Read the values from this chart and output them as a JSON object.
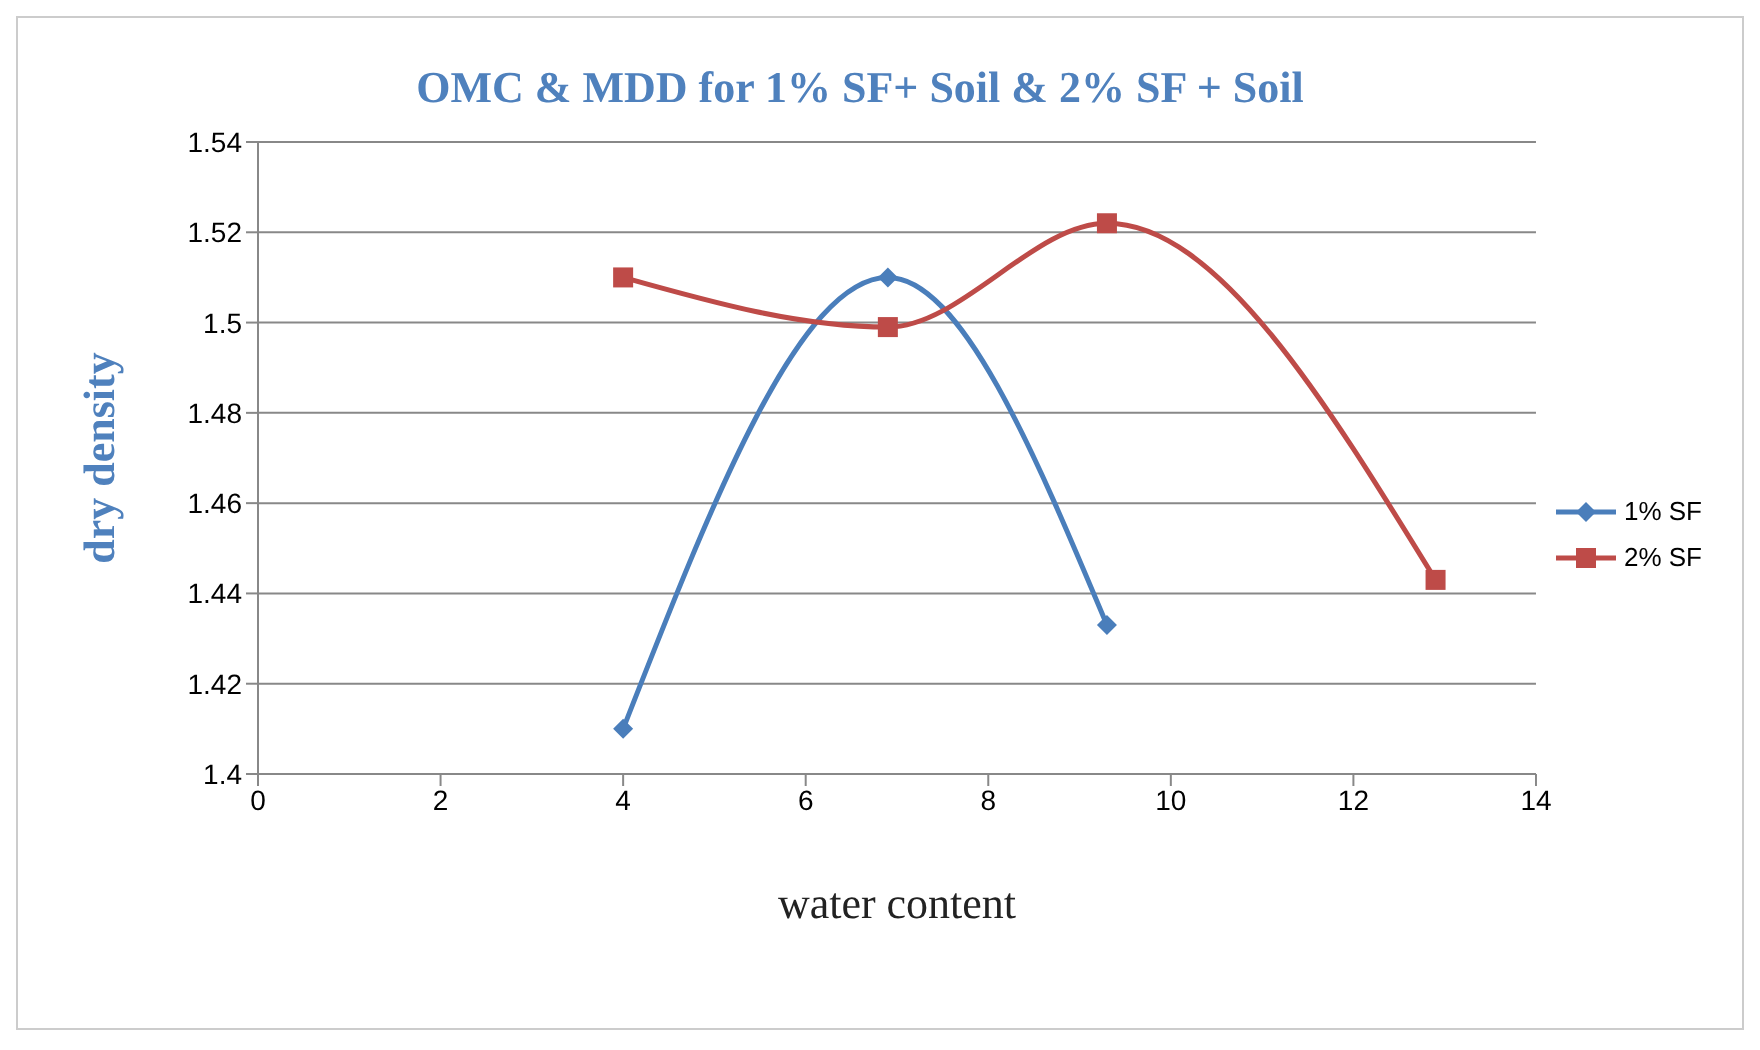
{
  "chart_data": {
    "type": "line",
    "title": "OMC & MDD for 1% SF+ Soil & 2% SF + Soil",
    "xlabel": "water content",
    "ylabel": "dry density",
    "series": [
      {
        "name": "1% SF",
        "color": "#4a7ebb",
        "marker": "diamond",
        "x": [
          4,
          6.9,
          9.3
        ],
        "values": [
          1.41,
          1.51,
          1.433
        ]
      },
      {
        "name": "2% SF",
        "color": "#be4b48",
        "marker": "square",
        "x": [
          4,
          6.9,
          9.3,
          12.9
        ],
        "values": [
          1.51,
          1.499,
          1.522,
          1.443
        ]
      }
    ],
    "xlim": [
      0,
      14
    ],
    "xticks": [
      0,
      2,
      4,
      6,
      8,
      10,
      12,
      14
    ],
    "ylim": [
      1.4,
      1.54
    ],
    "yticks": [
      1.4,
      1.42,
      1.44,
      1.46,
      1.48,
      1.5,
      1.52,
      1.54
    ],
    "grid": "y",
    "legend": "right",
    "line_style": "solid"
  }
}
